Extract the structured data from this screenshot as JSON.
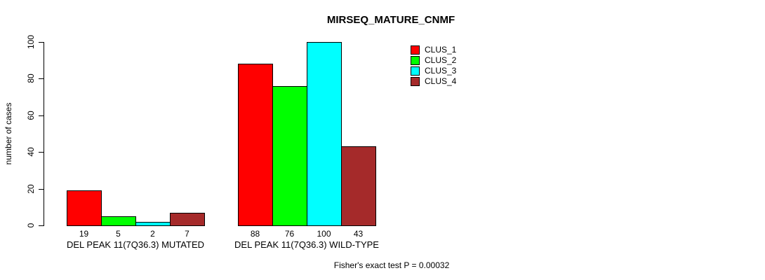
{
  "chart_data": {
    "type": "bar",
    "title": "MIRSEQ_MATURE_CNMF",
    "ylabel": "number of cases",
    "xlabel": "",
    "ylim": [
      0,
      100
    ],
    "yticks": [
      0,
      20,
      40,
      60,
      80,
      100
    ],
    "grid": false,
    "legend_position": "top-right",
    "categories": [
      "DEL PEAK 11(7Q36.3) MUTATED",
      "DEL PEAK 11(7Q36.3) WILD-TYPE"
    ],
    "series": [
      {
        "name": "CLUS_1",
        "color": "#FF0000",
        "values": [
          19,
          88
        ]
      },
      {
        "name": "CLUS_2",
        "color": "#00FF00",
        "values": [
          5,
          76
        ]
      },
      {
        "name": "CLUS_3",
        "color": "#00FFFF",
        "values": [
          2,
          100
        ]
      },
      {
        "name": "CLUS_4",
        "color": "#A52A2A",
        "values": [
          7,
          43
        ]
      }
    ],
    "bar_value_labels": [
      [
        19,
        5,
        2,
        7
      ],
      [
        88,
        76,
        100,
        43
      ]
    ],
    "annotation": "Fisher's exact test P = 0.00032"
  }
}
